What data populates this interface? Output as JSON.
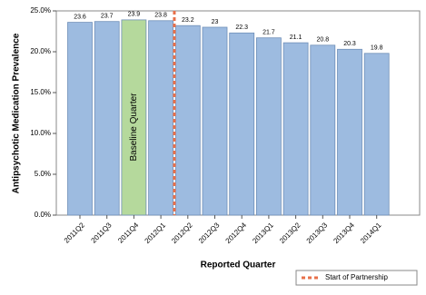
{
  "chart_data": {
    "type": "bar",
    "xlabel": "Reported Quarter",
    "ylabel": "Antipsychotic Medication Prevalence",
    "categories": [
      "2011Q2",
      "2011Q3",
      "2011Q4",
      "2012Q1",
      "2012Q2",
      "2012Q3",
      "2012Q4",
      "2013Q1",
      "2013Q2",
      "2013Q3",
      "2013Q4",
      "2014Q1"
    ],
    "values": [
      23.6,
      23.7,
      23.9,
      23.8,
      23.2,
      23.0,
      22.3,
      21.7,
      21.1,
      20.8,
      20.3,
      19.8
    ],
    "colors": [
      "#9dbbe0",
      "#9dbbe0",
      "#b5d99c",
      "#9dbbe0",
      "#9dbbe0",
      "#9dbbe0",
      "#9dbbe0",
      "#9dbbe0",
      "#9dbbe0",
      "#9dbbe0",
      "#9dbbe0",
      "#9dbbe0"
    ],
    "bar_annotation": "Baseline Quarter",
    "ylim": [
      0,
      25
    ],
    "yticks": [
      {
        "value": 0,
        "label": "0.0%"
      },
      {
        "value": 5,
        "label": "5.0%"
      },
      {
        "value": 10,
        "label": "10.0%"
      },
      {
        "value": 15,
        "label": "15.0%"
      },
      {
        "value": 20,
        "label": "20.0%"
      },
      {
        "value": 25,
        "label": "25.0%"
      }
    ],
    "reference_line": {
      "label": "Start of Partnership",
      "color": "#e8704a"
    }
  }
}
